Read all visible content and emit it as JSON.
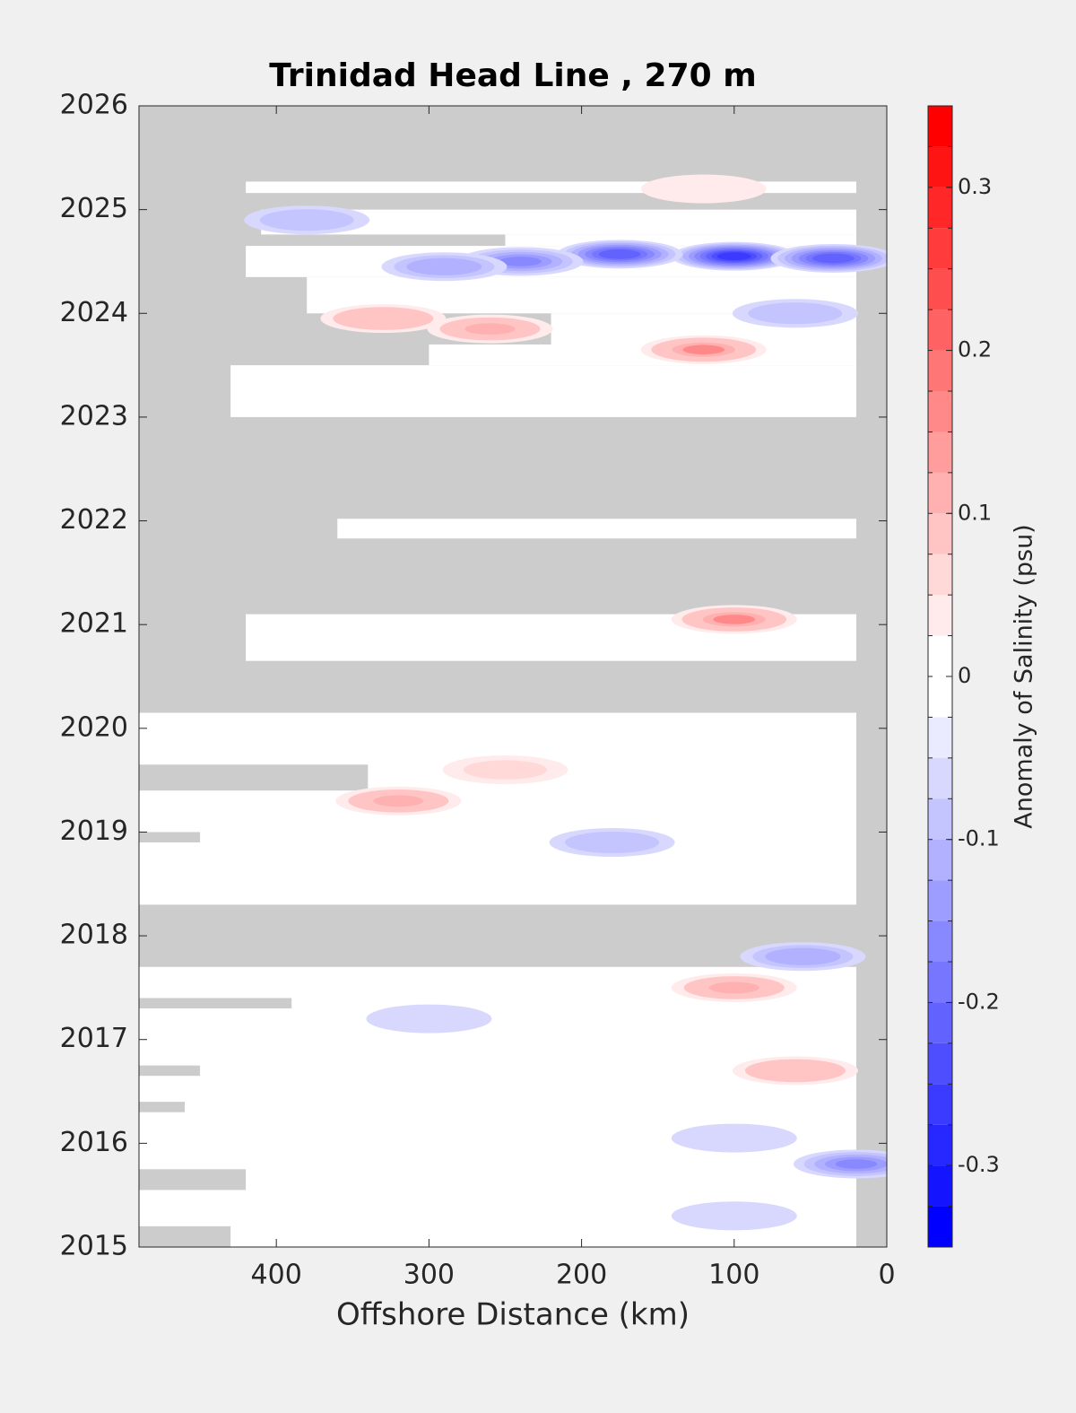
{
  "chart_data": {
    "type": "contour",
    "title": "Trinidad Head Line , 270 m",
    "xlabel": "Offshore Distance (km)",
    "xlim": [
      490,
      0
    ],
    "xticks": [
      400,
      300,
      200,
      100,
      0
    ],
    "ylim": [
      2015,
      2026
    ],
    "yticks": [
      2015,
      2016,
      2017,
      2018,
      2019,
      2020,
      2021,
      2022,
      2023,
      2024,
      2025,
      2026
    ],
    "missing_color": "#cccccc",
    "colorbar": {
      "label": "Anomaly of Salinity (psu)",
      "lim": [
        -0.35,
        0.35
      ],
      "ticks": [
        -0.3,
        -0.2,
        -0.1,
        0,
        0.1,
        0.2,
        0.3
      ],
      "level_step": 0.025
    },
    "coverage": [
      {
        "y": [
          2015.0,
          2017.7
        ],
        "x": [
          490,
          20
        ]
      },
      {
        "y": [
          2018.3,
          2020.15
        ],
        "x": [
          490,
          20
        ]
      },
      {
        "y": [
          2020.65,
          2021.1
        ],
        "x": [
          420,
          20
        ]
      },
      {
        "y": [
          2021.83,
          2022.02
        ],
        "x": [
          360,
          20
        ]
      },
      {
        "y": [
          2023.0,
          2023.5
        ],
        "x": [
          430,
          20
        ]
      },
      {
        "y": [
          2023.5,
          2023.7
        ],
        "x": [
          300,
          20
        ]
      },
      {
        "y": [
          2023.7,
          2024.0
        ],
        "x": [
          220,
          20
        ]
      },
      {
        "y": [
          2024.0,
          2024.35
        ],
        "x": [
          380,
          20
        ]
      },
      {
        "y": [
          2024.35,
          2024.65
        ],
        "x": [
          420,
          20
        ]
      },
      {
        "y": [
          2024.65,
          2024.76
        ],
        "x": [
          250,
          20
        ]
      },
      {
        "y": [
          2024.76,
          2025.0
        ],
        "x": [
          410,
          20
        ]
      },
      {
        "y": [
          2025.16,
          2025.27
        ],
        "x": [
          420,
          20
        ]
      }
    ],
    "gaps": [
      {
        "y": [
          2019.4,
          2019.65
        ],
        "x": [
          490,
          340
        ]
      },
      {
        "y": [
          2018.9,
          2019.0
        ],
        "x": [
          490,
          450
        ]
      },
      {
        "y": [
          2017.3,
          2017.4
        ],
        "x": [
          490,
          390
        ]
      },
      {
        "y": [
          2016.65,
          2016.75
        ],
        "x": [
          490,
          450
        ]
      },
      {
        "y": [
          2016.3,
          2016.4
        ],
        "x": [
          490,
          460
        ]
      },
      {
        "y": [
          2015.55,
          2015.75
        ],
        "x": [
          490,
          420
        ]
      },
      {
        "y": [
          2015.0,
          2015.2
        ],
        "x": [
          490,
          430
        ]
      }
    ],
    "patches": [
      {
        "x": 100,
        "y": 2024.55,
        "value": -0.25
      },
      {
        "x": 175,
        "y": 2024.57,
        "value": -0.22
      },
      {
        "x": 35,
        "y": 2024.53,
        "value": -0.22
      },
      {
        "x": 240,
        "y": 2024.5,
        "value": -0.15
      },
      {
        "x": 290,
        "y": 2024.45,
        "value": -0.12
      },
      {
        "x": 380,
        "y": 2024.9,
        "value": -0.08
      },
      {
        "x": 330,
        "y": 2023.95,
        "value": 0.1
      },
      {
        "x": 260,
        "y": 2023.85,
        "value": 0.12
      },
      {
        "x": 120,
        "y": 2023.65,
        "value": 0.15
      },
      {
        "x": 60,
        "y": 2024.0,
        "value": -0.08
      },
      {
        "x": 120,
        "y": 2025.2,
        "value": 0.05
      },
      {
        "x": 100,
        "y": 2021.05,
        "value": 0.15
      },
      {
        "x": 320,
        "y": 2019.3,
        "value": 0.12
      },
      {
        "x": 180,
        "y": 2018.9,
        "value": -0.08
      },
      {
        "x": 100,
        "y": 2017.5,
        "value": 0.12
      },
      {
        "x": 55,
        "y": 2017.8,
        "value": -0.1
      },
      {
        "x": 60,
        "y": 2016.7,
        "value": 0.1
      },
      {
        "x": 100,
        "y": 2016.05,
        "value": -0.07
      },
      {
        "x": 20,
        "y": 2015.8,
        "value": -0.15
      },
      {
        "x": 100,
        "y": 2015.3,
        "value": -0.07
      },
      {
        "x": 250,
        "y": 2019.6,
        "value": 0.07
      },
      {
        "x": 300,
        "y": 2017.2,
        "value": -0.05
      }
    ]
  }
}
